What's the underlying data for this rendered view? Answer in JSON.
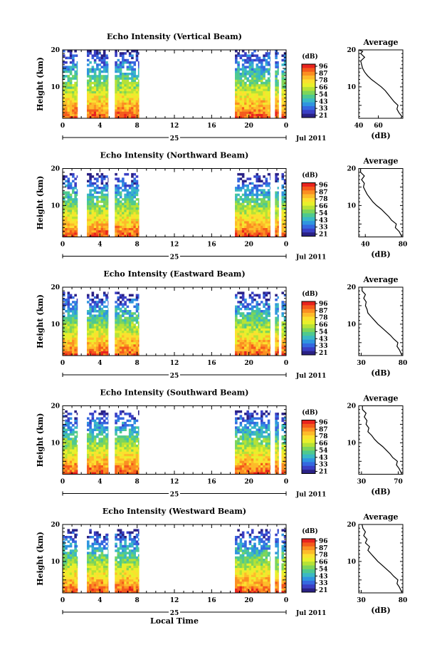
{
  "figure": {
    "date_label": "Jul 2011",
    "day_label": "25",
    "xlabel": "Local Time",
    "colorbar_unit": "(dB)",
    "colorbar_ticks": [
      "96",
      "87",
      "78",
      "66",
      "54",
      "43",
      "33",
      "21"
    ],
    "colorbar_colors": [
      "#e8231e",
      "#f45a1c",
      "#fb8f22",
      "#fdbb2a",
      "#fbe02f",
      "#e8f02b",
      "#b6e236",
      "#7dd55a",
      "#4ec98f",
      "#3ab9c4",
      "#2f95df",
      "#3568e0",
      "#3a3fc4",
      "#2a2185"
    ],
    "profile_title": "Average",
    "profile_xlabel": "(dB)",
    "ylabel": "Height (km)"
  },
  "chart_data": [
    {
      "type": "heatmap",
      "title": "Echo Intensity (Vertical Beam)",
      "xlabel": "Local Time",
      "ylabel": "Height (km)",
      "xlim": [
        0,
        24
      ],
      "ylim": [
        1.5,
        20
      ],
      "xticks": [
        "0",
        "4",
        "8",
        "12",
        "16",
        "20",
        "0"
      ],
      "yticks": [
        "20",
        "10"
      ],
      "data_segments_hours": [
        [
          0,
          1.6
        ],
        [
          2.6,
          4.9
        ],
        [
          5.6,
          8.2
        ],
        [
          18.5,
          22.3
        ],
        [
          22.8,
          23.2
        ],
        [
          23.5,
          24
        ]
      ],
      "data_top_km": 20,
      "colorbar": {
        "label": "(dB)",
        "range": [
          21,
          96
        ]
      },
      "profile": {
        "title": "Average",
        "xlabel": "(dB)",
        "xlim": [
          40,
          85
        ],
        "xticks": [
          "40",
          "60"
        ],
        "yticks": [
          "20",
          "10"
        ],
        "points": [
          [
            83,
            1.5
          ],
          [
            84,
            2
          ],
          [
            81,
            3
          ],
          [
            79,
            4
          ],
          [
            80,
            5
          ],
          [
            76,
            6
          ],
          [
            73,
            7
          ],
          [
            70,
            8
          ],
          [
            67,
            9
          ],
          [
            63,
            10
          ],
          [
            58,
            11
          ],
          [
            53,
            12
          ],
          [
            49,
            13
          ],
          [
            46,
            14
          ],
          [
            44,
            15
          ],
          [
            43,
            16
          ],
          [
            42,
            17
          ],
          [
            46,
            18
          ],
          [
            42,
            19
          ],
          [
            44,
            19.6
          ],
          [
            40,
            20
          ]
        ]
      }
    },
    {
      "type": "heatmap",
      "title": "Echo Intensity (Northward Beam)",
      "xlabel": "Local Time",
      "ylabel": "Height (km)",
      "xlim": [
        0,
        24
      ],
      "ylim": [
        1.5,
        20
      ],
      "xticks": [
        "0",
        "4",
        "8",
        "12",
        "16",
        "20",
        "0"
      ],
      "yticks": [
        "20",
        "10"
      ],
      "data_segments_hours": [
        [
          0,
          1.6
        ],
        [
          2.6,
          4.9
        ],
        [
          5.6,
          8.2
        ],
        [
          18.5,
          22.3
        ],
        [
          22.8,
          23.2
        ],
        [
          23.5,
          24
        ]
      ],
      "data_top_km": 18.2,
      "colorbar": {
        "label": "(dB)",
        "range": [
          21,
          96
        ]
      },
      "profile": {
        "title": "Average",
        "xlabel": "(dB)",
        "xlim": [
          33,
          80
        ],
        "xticks": [
          "40",
          "80"
        ],
        "yticks": [
          "20",
          "10"
        ],
        "points": [
          [
            79,
            1.5
          ],
          [
            78,
            2
          ],
          [
            76,
            3
          ],
          [
            72,
            4
          ],
          [
            73,
            5
          ],
          [
            68,
            6
          ],
          [
            65,
            7
          ],
          [
            61,
            8
          ],
          [
            57,
            9
          ],
          [
            52,
            10
          ],
          [
            48,
            11
          ],
          [
            45,
            12
          ],
          [
            42,
            13
          ],
          [
            40,
            14
          ],
          [
            38,
            15
          ],
          [
            39,
            16
          ],
          [
            36,
            17
          ],
          [
            39,
            18
          ],
          [
            35,
            19
          ],
          [
            35,
            20
          ]
        ]
      }
    },
    {
      "type": "heatmap",
      "title": "Echo Intensity (Eastward Beam)",
      "xlabel": "Local Time",
      "ylabel": "Height (km)",
      "xlim": [
        0,
        24
      ],
      "ylim": [
        1.5,
        20
      ],
      "xticks": [
        "0",
        "4",
        "8",
        "12",
        "16",
        "20",
        "0"
      ],
      "yticks": [
        "20",
        "10"
      ],
      "data_segments_hours": [
        [
          0,
          1.6
        ],
        [
          2.6,
          4.9
        ],
        [
          5.6,
          8.2
        ],
        [
          18.5,
          22.3
        ],
        [
          22.8,
          23.2
        ],
        [
          23.5,
          24
        ]
      ],
      "data_top_km": 18.4,
      "colorbar": {
        "label": "(dB)",
        "range": [
          21,
          96
        ]
      },
      "profile": {
        "title": "Average",
        "xlabel": "(dB)",
        "xlim": [
          27,
          80
        ],
        "xticks": [
          "30",
          "80"
        ],
        "yticks": [
          "20",
          "10"
        ],
        "points": [
          [
            79,
            1.5
          ],
          [
            78,
            2
          ],
          [
            76,
            3
          ],
          [
            73,
            4
          ],
          [
            74,
            5
          ],
          [
            69,
            6
          ],
          [
            65,
            7
          ],
          [
            60,
            8
          ],
          [
            55,
            9
          ],
          [
            50,
            10
          ],
          [
            46,
            11
          ],
          [
            42,
            12
          ],
          [
            38,
            13
          ],
          [
            37,
            14
          ],
          [
            35,
            15
          ],
          [
            36,
            16
          ],
          [
            33,
            17
          ],
          [
            35,
            18
          ],
          [
            31,
            19
          ],
          [
            31,
            20
          ]
        ]
      }
    },
    {
      "type": "heatmap",
      "title": "Echo Intensity (Southward Beam)",
      "xlabel": "Local Time",
      "ylabel": "Height (km)",
      "xlim": [
        0,
        24
      ],
      "ylim": [
        1.5,
        20
      ],
      "xticks": [
        "0",
        "4",
        "8",
        "12",
        "16",
        "20",
        "0"
      ],
      "yticks": [
        "20",
        "10"
      ],
      "data_segments_hours": [
        [
          0,
          1.6
        ],
        [
          2.6,
          4.9
        ],
        [
          5.6,
          8.2
        ],
        [
          18.5,
          22.3
        ],
        [
          22.8,
          23.2
        ],
        [
          23.5,
          24
        ]
      ],
      "data_top_km": 18.4,
      "colorbar": {
        "label": "(dB)",
        "range": [
          21,
          96
        ]
      },
      "profile": {
        "title": "Average",
        "xlabel": "(dB)",
        "xlim": [
          27,
          75
        ],
        "xticks": [
          "30",
          "70"
        ],
        "yticks": [
          "20",
          "10"
        ],
        "points": [
          [
            74,
            1.5
          ],
          [
            73,
            2
          ],
          [
            71,
            3
          ],
          [
            68,
            4
          ],
          [
            69,
            5
          ],
          [
            64,
            6
          ],
          [
            61,
            7
          ],
          [
            57,
            8
          ],
          [
            53,
            9
          ],
          [
            48,
            10
          ],
          [
            44,
            11
          ],
          [
            41,
            12
          ],
          [
            37,
            13
          ],
          [
            38,
            14
          ],
          [
            35,
            15
          ],
          [
            36,
            16
          ],
          [
            33,
            17
          ],
          [
            35,
            18
          ],
          [
            31,
            19
          ],
          [
            31,
            20
          ]
        ]
      }
    },
    {
      "type": "heatmap",
      "title": "Echo Intensity (Westward Beam)",
      "xlabel": "Local Time",
      "ylabel": "Height (km)",
      "xlim": [
        0,
        24
      ],
      "ylim": [
        1.5,
        20
      ],
      "xticks": [
        "0",
        "4",
        "8",
        "12",
        "16",
        "20",
        "0"
      ],
      "yticks": [
        "20",
        "10"
      ],
      "data_segments_hours": [
        [
          0,
          1.6
        ],
        [
          2.6,
          4.9
        ],
        [
          5.6,
          8.2
        ],
        [
          18.5,
          22.3
        ],
        [
          22.8,
          23.2
        ],
        [
          23.5,
          24
        ]
      ],
      "data_top_km": 18.4,
      "colorbar": {
        "label": "(dB)",
        "range": [
          21,
          96
        ]
      },
      "profile": {
        "title": "Average",
        "xlabel": "(dB)",
        "xlim": [
          27,
          80
        ],
        "xticks": [
          "30",
          "80"
        ],
        "yticks": [
          "20",
          "10"
        ],
        "points": [
          [
            79,
            1.5
          ],
          [
            78,
            2
          ],
          [
            76,
            3
          ],
          [
            73,
            4
          ],
          [
            74,
            5
          ],
          [
            69,
            6
          ],
          [
            65,
            7
          ],
          [
            60,
            8
          ],
          [
            55,
            9
          ],
          [
            50,
            10
          ],
          [
            46,
            11
          ],
          [
            42,
            12
          ],
          [
            38,
            13
          ],
          [
            40,
            14
          ],
          [
            35,
            15
          ],
          [
            37,
            16
          ],
          [
            33,
            17
          ],
          [
            35,
            18
          ],
          [
            32,
            19
          ],
          [
            31,
            20
          ]
        ]
      }
    }
  ]
}
